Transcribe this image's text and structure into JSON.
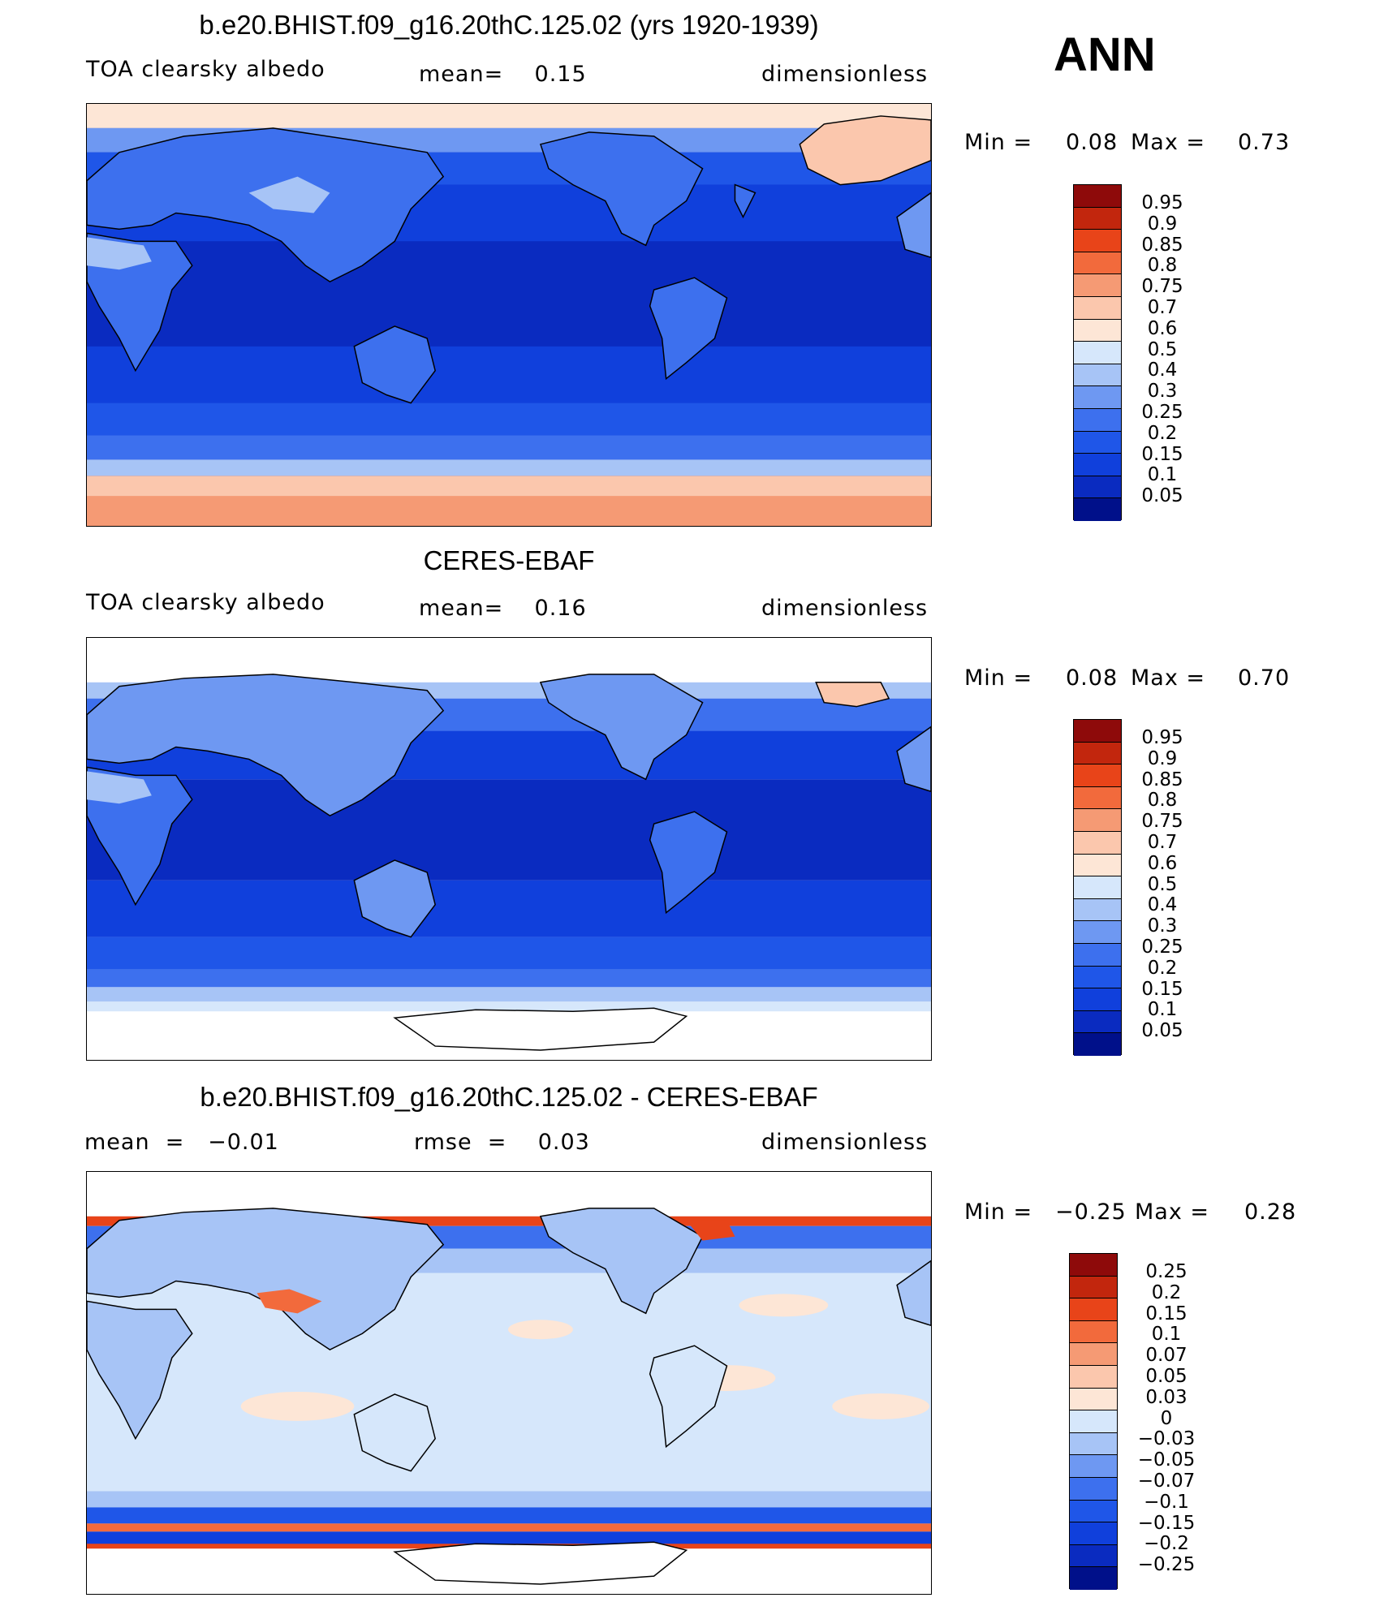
{
  "season": "ANN",
  "colors": {
    "abs": [
      "#00108a",
      "#0a2bc0",
      "#1040dc",
      "#1f56e8",
      "#3d70ee",
      "#6e98f2",
      "#a7c4f6",
      "#d6e7fb",
      "#fde6d6",
      "#fbc7ad",
      "#f59a74",
      "#f26a3c",
      "#e84419",
      "#c2260d",
      "#8e0a0a"
    ],
    "diff": [
      "#00108a",
      "#0a2bc0",
      "#1040dc",
      "#1f56e8",
      "#3d70ee",
      "#6e98f2",
      "#a7c4f6",
      "#d6e7fb",
      "#fde6d6",
      "#fbc7ad",
      "#f59a74",
      "#f26a3c",
      "#e84419",
      "#c2260d",
      "#8e0a0a"
    ]
  },
  "panels": [
    {
      "title": "b.e20.BHIST.f09_g16.20thC.125.02 (yrs 1920-1939)",
      "field": "TOA clearsky albedo",
      "stat": "mean=    0.15",
      "units": "dimensionless",
      "min_label": "Min  =",
      "min_value": "0.08",
      "max_label": "Max  =",
      "max_value": "0.73",
      "colorbar_labels": [
        "0.95",
        "0.9",
        "0.85",
        "0.8",
        "0.75",
        "0.7",
        "0.6",
        "0.5",
        "0.4",
        "0.3",
        "0.25",
        "0.2",
        "0.15",
        "0.1",
        "0.05"
      ]
    },
    {
      "title": "CERES-EBAF",
      "field": "TOA clearsky albedo",
      "stat": "mean=    0.16",
      "units": "dimensionless",
      "min_label": "Min  =",
      "min_value": "0.08",
      "max_label": "Max  =",
      "max_value": "0.70",
      "colorbar_labels": [
        "0.95",
        "0.9",
        "0.85",
        "0.8",
        "0.75",
        "0.7",
        "0.6",
        "0.5",
        "0.4",
        "0.3",
        "0.25",
        "0.2",
        "0.15",
        "0.1",
        "0.05"
      ]
    },
    {
      "title": "b.e20.BHIST.f09_g16.20thC.125.02 - CERES-EBAF",
      "field": "mean  =   −0.01",
      "stat": "rmse  =    0.03",
      "units": "dimensionless",
      "min_label": "Min  =",
      "min_value": "−0.25",
      "max_label": "Max  =",
      "max_value": "0.28",
      "colorbar_labels": [
        "0.25",
        "0.2",
        "0.15",
        "0.1",
        "0.07",
        "0.05",
        "0.03",
        "0",
        "−0.03",
        "−0.05",
        "−0.07",
        "−0.1",
        "−0.15",
        "−0.2",
        "−0.25"
      ]
    }
  ]
}
